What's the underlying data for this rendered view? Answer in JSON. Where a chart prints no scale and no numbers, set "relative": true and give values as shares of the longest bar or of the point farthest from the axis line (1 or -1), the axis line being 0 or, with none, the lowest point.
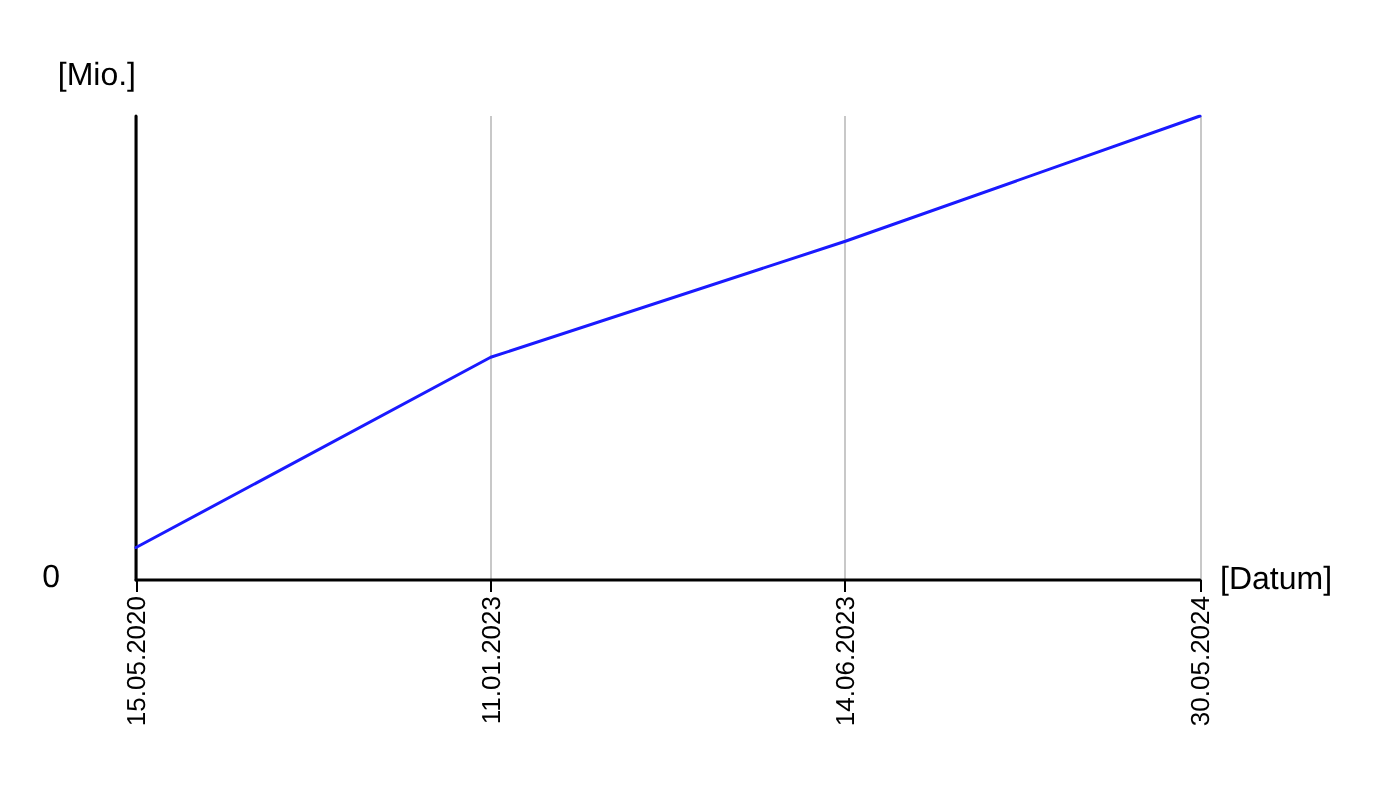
{
  "chart_data": {
    "type": "line",
    "relative": true,
    "xlabel": "[Datum]",
    "ylabel": "[Mio.]",
    "categories": [
      "15.05.2020",
      "11.01.2023",
      "14.06.2023",
      "30.05.2024"
    ],
    "series": [
      {
        "color": "#1a1aff",
        "values": [
          0.07,
          0.48,
          0.73,
          1
        ]
      }
    ],
    "grid": "x",
    "marker": "none",
    "line_style": "solid",
    "annotations": [
      "0"
    ]
  }
}
